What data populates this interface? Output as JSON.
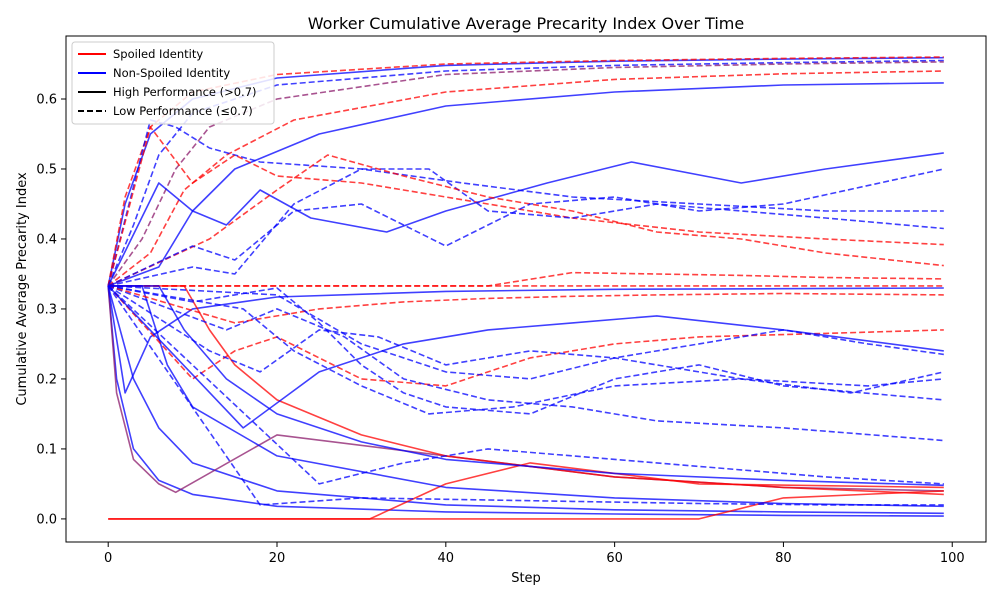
{
  "chart_data": {
    "type": "line",
    "title": "Worker Cumulative Average Precarity Index Over Time",
    "xlabel": "Step",
    "ylabel": "Cumulative Average Precarity Index",
    "xlim": [
      -5,
      104
    ],
    "ylim": [
      -0.033,
      0.69
    ],
    "xticks": [
      0,
      20,
      40,
      60,
      80,
      100
    ],
    "yticks": [
      0.0,
      0.1,
      0.2,
      0.3,
      0.4,
      0.5,
      0.6
    ],
    "ytick_labels": [
      "0.0",
      "0.1",
      "0.2",
      "0.3",
      "0.4",
      "0.5",
      "0.6"
    ],
    "grid": false,
    "legend_position": "top-left",
    "legend": [
      {
        "label": "Spoiled Identity",
        "color": "#ff0000",
        "style": "solid"
      },
      {
        "label": "Non-Spoiled Identity",
        "color": "#0000ff",
        "style": "solid"
      },
      {
        "label": "High Performance (>0.7)",
        "color": "#000000",
        "style": "solid"
      },
      {
        "label": "Low Performance (≤0.7)",
        "color": "#000000",
        "style": "dashed"
      }
    ],
    "colors": {
      "spoiled": "#ff0000",
      "non_spoiled": "#0000ff",
      "mixed": "#8b1a6b"
    },
    "series": [
      {
        "color": "#0000ff",
        "style": "solid",
        "x": [
          0,
          2,
          5,
          10,
          20,
          40,
          60,
          80,
          99
        ],
        "y": [
          0.333,
          0.45,
          0.55,
          0.6,
          0.63,
          0.648,
          0.654,
          0.657,
          0.659
        ]
      },
      {
        "color": "#ff0000",
        "style": "dashed",
        "x": [
          0,
          2,
          5,
          10,
          20,
          40,
          60,
          80,
          99
        ],
        "y": [
          0.333,
          0.46,
          0.56,
          0.61,
          0.635,
          0.65,
          0.655,
          0.658,
          0.66
        ]
      },
      {
        "color": "#0000ff",
        "style": "dashed",
        "x": [
          0,
          3,
          6,
          10,
          20,
          40,
          60,
          80,
          99
        ],
        "y": [
          0.333,
          0.42,
          0.52,
          0.58,
          0.62,
          0.64,
          0.648,
          0.652,
          0.655
        ]
      },
      {
        "color": "#8b1a6b",
        "style": "dashed",
        "x": [
          0,
          4,
          8,
          12,
          20,
          40,
          60,
          80,
          99
        ],
        "y": [
          0.333,
          0.4,
          0.5,
          0.56,
          0.6,
          0.635,
          0.645,
          0.65,
          0.653
        ]
      },
      {
        "color": "#ff0000",
        "style": "dashed",
        "x": [
          0,
          5,
          9,
          14,
          22,
          40,
          60,
          80,
          99
        ],
        "y": [
          0.333,
          0.38,
          0.47,
          0.52,
          0.57,
          0.61,
          0.628,
          0.636,
          0.64
        ]
      },
      {
        "color": "#0000ff",
        "style": "solid",
        "x": [
          0,
          6,
          10,
          15,
          25,
          40,
          60,
          80,
          99
        ],
        "y": [
          0.333,
          0.36,
          0.44,
          0.5,
          0.55,
          0.59,
          0.61,
          0.62,
          0.623
        ]
      },
      {
        "color": "#0000ff",
        "style": "dashed",
        "x": [
          0,
          5,
          8,
          12,
          18,
          30,
          42,
          55,
          70,
          85,
          99
        ],
        "y": [
          0.333,
          0.57,
          0.56,
          0.53,
          0.51,
          0.5,
          0.48,
          0.46,
          0.45,
          0.44,
          0.44
        ]
      },
      {
        "color": "#ff0000",
        "style": "dashed",
        "x": [
          0,
          5,
          10,
          15,
          20,
          30,
          40,
          55,
          70,
          85,
          99
        ],
        "y": [
          0.333,
          0.56,
          0.48,
          0.52,
          0.49,
          0.48,
          0.46,
          0.43,
          0.41,
          0.4,
          0.392
        ]
      },
      {
        "color": "#0000ff",
        "style": "solid",
        "x": [
          0,
          6,
          10,
          14,
          18,
          24,
          33,
          40,
          52,
          62,
          75,
          85,
          99
        ],
        "y": [
          0.333,
          0.48,
          0.44,
          0.42,
          0.47,
          0.43,
          0.41,
          0.44,
          0.48,
          0.51,
          0.48,
          0.5,
          0.523
        ]
      },
      {
        "color": "#0000ff",
        "style": "dashed",
        "x": [
          0,
          10,
          15,
          22,
          30,
          38,
          45,
          55,
          65,
          75,
          85,
          99
        ],
        "y": [
          0.333,
          0.36,
          0.35,
          0.45,
          0.5,
          0.5,
          0.44,
          0.43,
          0.45,
          0.44,
          0.43,
          0.415
        ]
      },
      {
        "color": "#ff0000",
        "style": "dashed",
        "x": [
          0,
          12,
          20,
          26,
          35,
          45,
          55,
          65,
          75,
          85,
          99
        ],
        "y": [
          0.333,
          0.4,
          0.47,
          0.52,
          0.49,
          0.46,
          0.44,
          0.41,
          0.4,
          0.38,
          0.362
        ]
      },
      {
        "color": "#0000ff",
        "style": "dashed",
        "x": [
          0,
          10,
          15,
          22,
          30,
          40,
          50,
          60,
          70,
          80,
          99
        ],
        "y": [
          0.333,
          0.39,
          0.37,
          0.44,
          0.45,
          0.39,
          0.45,
          0.46,
          0.44,
          0.45,
          0.5
        ]
      },
      {
        "color": "#ff0000",
        "style": "dashed",
        "x": [
          0,
          14,
          25,
          35,
          45,
          55,
          65,
          75,
          85,
          99
        ],
        "y": [
          0.333,
          0.333,
          0.333,
          0.333,
          0.333,
          0.352,
          0.35,
          0.348,
          0.345,
          0.343
        ]
      },
      {
        "color": "#ff0000",
        "style": "dashed",
        "x": [
          0,
          20,
          40,
          60,
          80,
          99
        ],
        "y": [
          0.333,
          0.333,
          0.333,
          0.333,
          0.333,
          0.333
        ]
      },
      {
        "color": "#0000ff",
        "style": "solid",
        "x": [
          0,
          3,
          6,
          10,
          20,
          40,
          60,
          80,
          99
        ],
        "y": [
          0.333,
          0.2,
          0.13,
          0.08,
          0.04,
          0.02,
          0.013,
          0.01,
          0.008
        ]
      },
      {
        "color": "#0000ff",
        "style": "solid",
        "x": [
          0,
          1,
          3,
          6,
          10,
          20,
          40,
          60,
          80,
          99
        ],
        "y": [
          0.333,
          0.2,
          0.1,
          0.055,
          0.035,
          0.018,
          0.01,
          0.007,
          0.005,
          0.004
        ]
      },
      {
        "color": "#8b1a6b",
        "style": "solid",
        "x": [
          0,
          1,
          3,
          6,
          8,
          20,
          40,
          60,
          80,
          99
        ],
        "y": [
          0.333,
          0.18,
          0.085,
          0.05,
          0.038,
          0.12,
          0.09,
          0.06,
          0.045,
          0.04
        ]
      },
      {
        "color": "#0000ff",
        "style": "solid",
        "x": [
          0,
          2,
          5,
          10,
          20,
          40,
          60,
          80,
          99
        ],
        "y": [
          0.333,
          0.18,
          0.26,
          0.3,
          0.317,
          0.325,
          0.328,
          0.329,
          0.33
        ]
      },
      {
        "color": "#ff0000",
        "style": "solid",
        "x": [
          0,
          10,
          20,
          30,
          31,
          40,
          50,
          70,
          99
        ],
        "y": [
          0.0,
          0.0,
          0.0,
          0.0,
          0.0,
          0.05,
          0.08,
          0.05,
          0.045
        ]
      },
      {
        "color": "#ff0000",
        "style": "solid",
        "x": [
          0,
          10,
          20,
          40,
          60,
          70,
          80,
          99
        ],
        "y": [
          0.0,
          0.0,
          0.0,
          0.0,
          0.0,
          0.0,
          0.03,
          0.04
        ]
      },
      {
        "color": "#ff0000",
        "style": "solid",
        "x": [
          0,
          9,
          12,
          15,
          20,
          30,
          40,
          60,
          80,
          99
        ],
        "y": [
          0.333,
          0.333,
          0.27,
          0.22,
          0.17,
          0.12,
          0.09,
          0.06,
          0.045,
          0.035
        ]
      },
      {
        "color": "#0000ff",
        "style": "solid",
        "x": [
          0,
          4,
          7,
          10,
          20,
          40,
          60,
          80,
          99
        ],
        "y": [
          0.333,
          0.333,
          0.22,
          0.16,
          0.09,
          0.045,
          0.03,
          0.022,
          0.018
        ]
      },
      {
        "color": "#0000ff",
        "style": "solid",
        "x": [
          0,
          6,
          9,
          14,
          20,
          30,
          40,
          60,
          80,
          99
        ],
        "y": [
          0.333,
          0.333,
          0.27,
          0.2,
          0.15,
          0.11,
          0.085,
          0.065,
          0.055,
          0.048
        ]
      },
      {
        "color": "#0000ff",
        "style": "dashed",
        "x": [
          0,
          10,
          15,
          20,
          25,
          30,
          35,
          40,
          50,
          60,
          70,
          80,
          99
        ],
        "y": [
          0.333,
          0.31,
          0.32,
          0.33,
          0.28,
          0.22,
          0.18,
          0.16,
          0.15,
          0.2,
          0.22,
          0.19,
          0.17
        ]
      },
      {
        "color": "#ff0000",
        "style": "dashed",
        "x": [
          0,
          10,
          15,
          20,
          30,
          40,
          50,
          60,
          70,
          85,
          99
        ],
        "y": [
          0.333,
          0.2,
          0.24,
          0.26,
          0.2,
          0.19,
          0.23,
          0.25,
          0.26,
          0.265,
          0.27
        ]
      },
      {
        "color": "#0000ff",
        "style": "dashed",
        "x": [
          0,
          12,
          18,
          25,
          32,
          40,
          50,
          60,
          75,
          90,
          99
        ],
        "y": [
          0.333,
          0.24,
          0.21,
          0.27,
          0.26,
          0.22,
          0.24,
          0.23,
          0.2,
          0.19,
          0.2
        ]
      },
      {
        "color": "#0000ff",
        "style": "dashed",
        "x": [
          0,
          14,
          20,
          28,
          35,
          45,
          55,
          65,
          80,
          99
        ],
        "y": [
          0.333,
          0.27,
          0.3,
          0.26,
          0.2,
          0.17,
          0.16,
          0.14,
          0.13,
          0.112
        ]
      },
      {
        "color": "#ff0000",
        "style": "dashed",
        "x": [
          0,
          15,
          25,
          35,
          45,
          55,
          65,
          80,
          99
        ],
        "y": [
          0.333,
          0.28,
          0.3,
          0.31,
          0.315,
          0.318,
          0.32,
          0.322,
          0.32
        ]
      },
      {
        "color": "#0000ff",
        "style": "dashed",
        "x": [
          0,
          16,
          22,
          30,
          38,
          48,
          60,
          75,
          88,
          99
        ],
        "y": [
          0.333,
          0.3,
          0.24,
          0.19,
          0.15,
          0.16,
          0.19,
          0.2,
          0.18,
          0.21
        ]
      },
      {
        "color": "#0000ff",
        "style": "dashed",
        "x": [
          0,
          20,
          30,
          40,
          50,
          60,
          70,
          80,
          90,
          99
        ],
        "y": [
          0.333,
          0.32,
          0.25,
          0.21,
          0.2,
          0.23,
          0.25,
          0.27,
          0.25,
          0.235
        ]
      },
      {
        "color": "#0000ff",
        "style": "solid",
        "x": [
          0,
          16,
          25,
          35,
          45,
          55,
          65,
          80,
          99
        ],
        "y": [
          0.333,
          0.13,
          0.21,
          0.25,
          0.27,
          0.28,
          0.29,
          0.27,
          0.24
        ]
      },
      {
        "color": "#0000ff",
        "style": "dashed",
        "x": [
          0,
          25,
          35,
          45,
          55,
          65,
          75,
          85,
          99
        ],
        "y": [
          0.333,
          0.05,
          0.08,
          0.1,
          0.09,
          0.08,
          0.07,
          0.06,
          0.05
        ]
      },
      {
        "color": "#0000ff",
        "style": "dashed",
        "x": [
          0,
          18,
          30,
          40,
          55,
          70,
          85,
          99
        ],
        "y": [
          0.333,
          0.02,
          0.03,
          0.028,
          0.025,
          0.022,
          0.02,
          0.02
        ]
      }
    ]
  }
}
